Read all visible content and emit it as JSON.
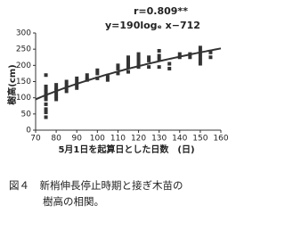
{
  "chart_data": {
    "type": "scatter",
    "annotations": [
      "r=0.809**",
      "y=190logₑ x−712"
    ],
    "x_label": "5月1日を起算日とした日数　(日)",
    "y_label": "樹高(cm)",
    "series": [
      {
        "color": "#333333",
        "x": [
          75,
          75,
          75,
          75,
          75,
          75,
          75,
          75,
          75,
          75,
          75,
          80,
          80,
          80,
          80,
          80,
          80,
          85,
          85,
          85,
          85,
          90,
          90,
          90,
          90,
          95,
          95,
          95,
          100,
          100,
          100,
          105,
          105,
          110,
          110,
          110,
          115,
          115,
          115,
          115,
          115,
          120,
          120,
          120,
          120,
          120,
          125,
          125,
          125,
          130,
          130,
          130,
          130,
          135,
          135,
          140,
          140,
          145,
          145,
          150,
          150,
          150,
          150,
          150,
          150,
          155,
          155
        ],
        "values": [
          40,
          55,
          65,
          80,
          95,
          105,
          110,
          120,
          125,
          135,
          170,
          95,
          105,
          115,
          125,
          130,
          140,
          120,
          130,
          140,
          150,
          130,
          140,
          150,
          160,
          155,
          160,
          170,
          160,
          175,
          185,
          155,
          165,
          175,
          190,
          200,
          180,
          195,
          205,
          215,
          225,
          195,
          205,
          215,
          225,
          235,
          195,
          215,
          225,
          195,
          220,
          230,
          245,
          190,
          205,
          225,
          235,
          225,
          235,
          205,
          215,
          225,
          235,
          245,
          255,
          225,
          240
        ]
      }
    ],
    "trendline": {
      "kind": "log",
      "slope": 190,
      "intercept": -712,
      "color": "#333333"
    },
    "xlim": [
      70,
      160
    ],
    "xticks": [
      70,
      80,
      90,
      100,
      110,
      120,
      130,
      140,
      150,
      160
    ],
    "ylim": [
      0,
      300
    ],
    "yticks": [
      0,
      50,
      100,
      150,
      200,
      250,
      300
    ],
    "grid": false
  },
  "caption": [
    "図４　新梢伸長停止時期と接ぎ木苗の",
    "樹高の相関。"
  ]
}
